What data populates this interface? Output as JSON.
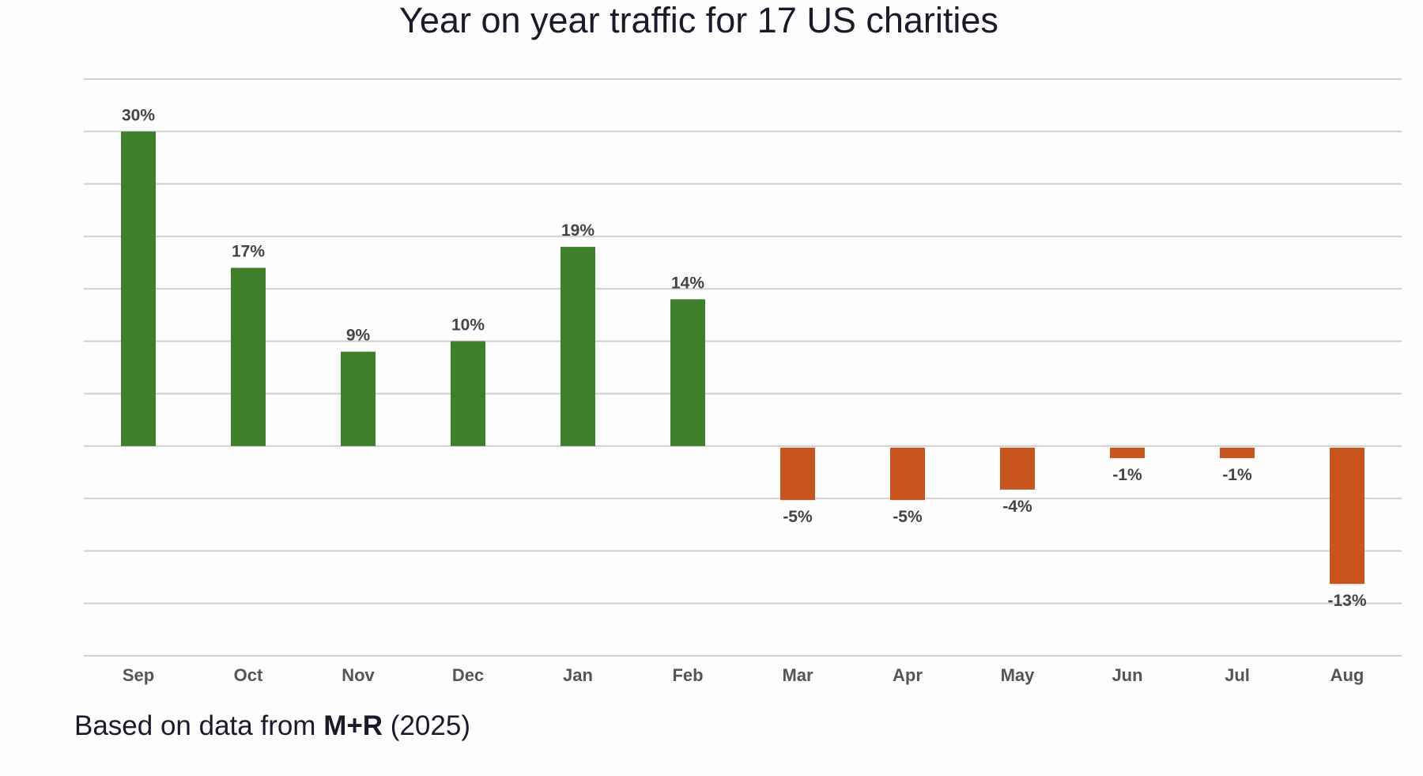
{
  "chart_data": {
    "type": "bar",
    "title": "Year on year traffic for 17 US charities",
    "categories": [
      "Sep",
      "Oct",
      "Nov",
      "Dec",
      "Jan",
      "Feb",
      "Mar",
      "Apr",
      "May",
      "Jun",
      "Jul",
      "Aug"
    ],
    "values": [
      30,
      17,
      9,
      10,
      19,
      14,
      -5,
      -5,
      -4,
      -1,
      -1,
      -13
    ],
    "data_labels": [
      "30%",
      "17%",
      "9%",
      "10%",
      "19%",
      "14%",
      "-5%",
      "-5%",
      "-4%",
      "-1%",
      "-1%",
      "-13%"
    ],
    "ylim": [
      -20,
      35
    ],
    "grid_step": 5,
    "grid": true,
    "xlabel": "",
    "ylabel": "",
    "colors": {
      "positive": "#3f7f2a",
      "negative": "#c8541e"
    }
  },
  "footer": {
    "prefix": "Based on data from ",
    "source": "M+R",
    "suffix": " (2025)"
  }
}
